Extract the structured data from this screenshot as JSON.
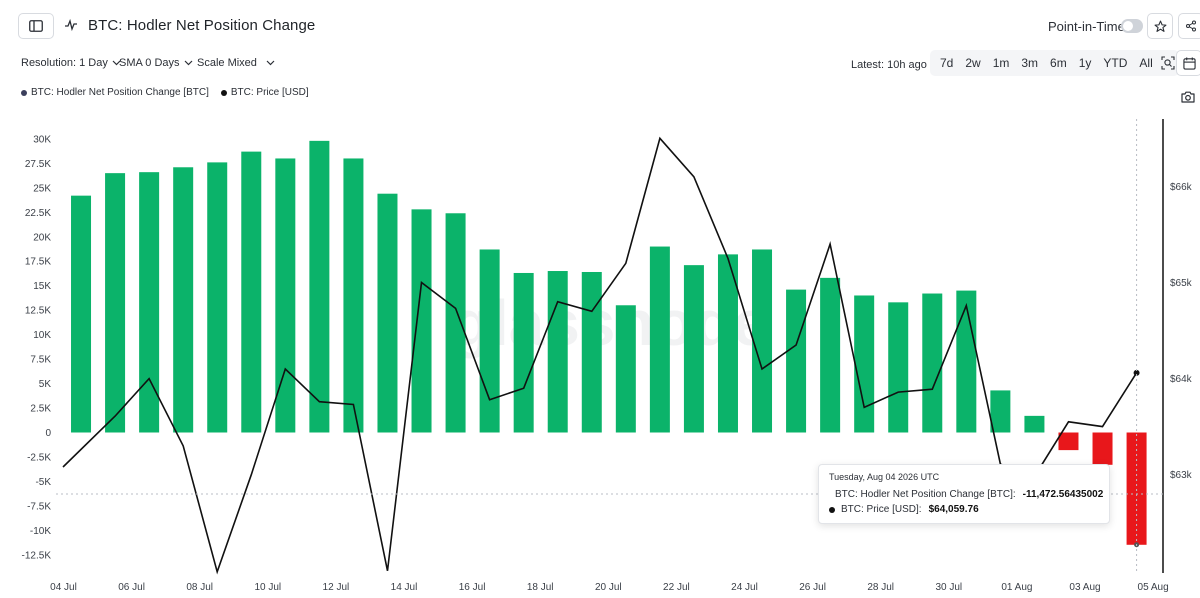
{
  "header": {
    "title": "BTC: Hodler Net Position Change",
    "point_in_time_label": "Point-in-Time"
  },
  "controls": {
    "resolution_label": "Resolution: 1 Day",
    "sma_label": "SMA 0 Days",
    "scale_label": "Scale Mixed",
    "latest_label": "Latest: 10h ago",
    "ranges": [
      "7d",
      "2w",
      "1m",
      "3m",
      "6m",
      "1y",
      "YTD",
      "All"
    ]
  },
  "legend": {
    "items": [
      {
        "label": "BTC: Hodler Net Position Change [BTC]",
        "color": "#3b3f5c"
      },
      {
        "label": "BTC: Price [USD]",
        "color": "#111111"
      }
    ]
  },
  "watermark": "glassnode",
  "tooltip": {
    "date": "Tuesday, Aug 04 2026 UTC",
    "rows": [
      {
        "label": "BTC: Hodler Net Position Change [BTC]:",
        "value": "-11,472.56435002",
        "color": "#555555"
      },
      {
        "label": "BTC: Price [USD]:",
        "value": "$64,059.76",
        "color": "#111111"
      }
    ]
  },
  "chart_data": {
    "type": "bar",
    "x_tick_labels": [
      "04 Jul",
      "06 Jul",
      "08 Jul",
      "10 Jul",
      "12 Jul",
      "14 Jul",
      "16 Jul",
      "18 Jul",
      "20 Jul",
      "22 Jul",
      "24 Jul",
      "26 Jul",
      "28 Jul",
      "30 Jul",
      "01 Aug",
      "03 Aug",
      "05 Aug"
    ],
    "left_axis": {
      "ticks": [
        30000,
        27500,
        25000,
        22500,
        20000,
        17500,
        15000,
        12500,
        10000,
        7500,
        5000,
        2500,
        0,
        -2500,
        -5000,
        -7500,
        -10000,
        -12500
      ],
      "tick_labels": [
        "30K",
        "27.5K",
        "25K",
        "22.5K",
        "20K",
        "17.5K",
        "15K",
        "12.5K",
        "10K",
        "7.5K",
        "5K",
        "2.5K",
        "0",
        "-2.5K",
        "-5K",
        "-7.5K",
        "-10K",
        "-12.5K"
      ]
    },
    "right_axis": {
      "ticks": [
        66000,
        65000,
        64000,
        63000
      ],
      "tick_labels": [
        "$66k",
        "$65k",
        "$64k",
        "$63k"
      ]
    },
    "positive_color": "#0bb36a",
    "negative_color": "#e8171b",
    "series": [
      {
        "name": "BTC: Hodler Net Position Change [BTC]",
        "type": "bar",
        "axis": "left",
        "values": [
          24200,
          26500,
          26600,
          27100,
          27600,
          28700,
          28000,
          29800,
          28000,
          24400,
          22800,
          22400,
          18700,
          16300,
          16500,
          16400,
          13000,
          19000,
          17100,
          18200,
          18700,
          14600,
          15800,
          14000,
          13300,
          14200,
          14500,
          4300,
          1700,
          -1800,
          -3300,
          -11473
        ]
      },
      {
        "name": "BTC: Price [USD]",
        "type": "line",
        "axis": "right",
        "color": "#111111",
        "values": [
          63080,
          63610,
          64000,
          63300,
          61990,
          63000,
          64100,
          63760,
          63730,
          62000,
          65000,
          64730,
          63780,
          63900,
          64800,
          64700,
          65200,
          66500,
          66100,
          65250,
          64100,
          64350,
          65400,
          63700,
          63860,
          63890,
          64760,
          63110,
          62980,
          63550,
          63500,
          64060
        ]
      }
    ]
  }
}
